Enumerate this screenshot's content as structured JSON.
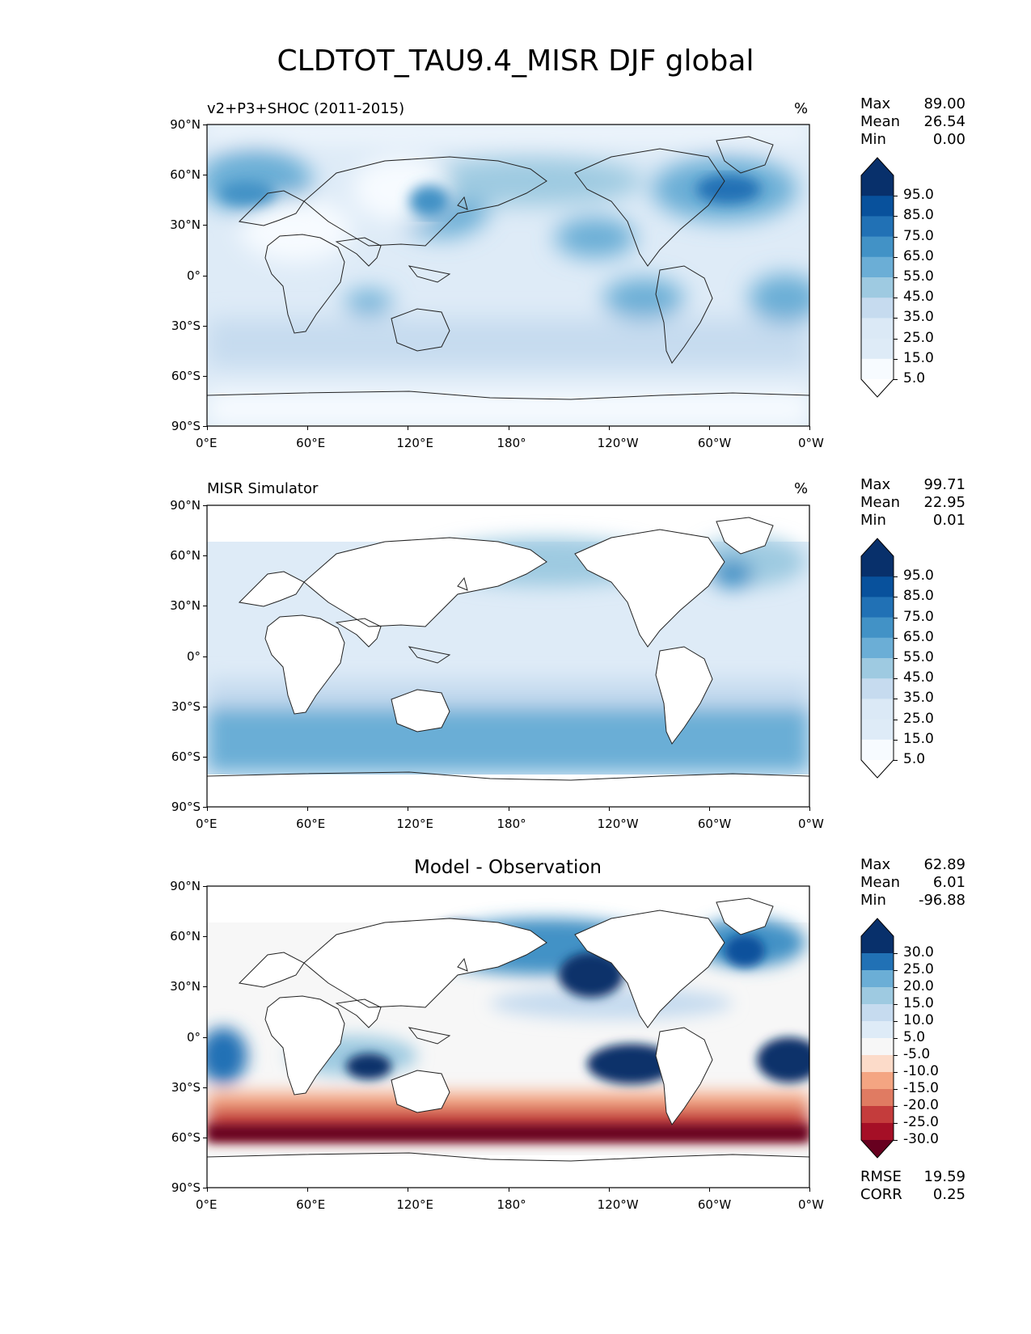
{
  "title": "CLDTOT_TAU9.4_MISR DJF global",
  "lat_ticks": [
    "90°N",
    "60°N",
    "30°N",
    "0°",
    "30°S",
    "60°S",
    "90°S"
  ],
  "lon_ticks": [
    "0°E",
    "60°E",
    "120°E",
    "180°",
    "120°W",
    "60°W",
    "0°W"
  ],
  "colors": {
    "blues": [
      "#f7fbff",
      "#deebf7",
      "#c6dbef",
      "#9ecae1",
      "#6baed6",
      "#4292c6",
      "#2171b5",
      "#08519c",
      "#08306b"
    ],
    "negative": [
      "#fcdbc9",
      "#f4a582",
      "#e07b62",
      "#c43c3c",
      "#a50f26",
      "#67001f"
    ],
    "neutral": "#f7f7f7"
  },
  "panels": [
    {
      "id": "model",
      "left_title": "v2+P3+SHOC (2011-2015)",
      "units": "%",
      "stats": {
        "max_label": "Max",
        "max": "89.00",
        "mean_label": "Mean",
        "mean": "26.54",
        "min_label": "Min",
        "min": "0.00"
      },
      "colorbar_labels": [
        "95.0",
        "85.0",
        "75.0",
        "65.0",
        "55.0",
        "45.0",
        "35.0",
        "25.0",
        "15.0",
        "5.0"
      ]
    },
    {
      "id": "obs",
      "left_title": "MISR Simulator",
      "units": "%",
      "stats": {
        "max_label": "Max",
        "max": "99.71",
        "mean_label": "Mean",
        "mean": "22.95",
        "min_label": "Min",
        "min": "0.01"
      },
      "colorbar_labels": [
        "95.0",
        "85.0",
        "75.0",
        "65.0",
        "55.0",
        "45.0",
        "35.0",
        "25.0",
        "15.0",
        "5.0"
      ]
    },
    {
      "id": "diff",
      "center_title": "Model - Observation",
      "stats": {
        "max_label": "Max",
        "max": "62.89",
        "mean_label": "Mean",
        "mean": "6.01",
        "min_label": "Min",
        "min": "-96.88"
      },
      "colorbar_labels": [
        "30.0",
        "25.0",
        "20.0",
        "15.0",
        "10.0",
        "5.0",
        "-5.0",
        "-10.0",
        "-15.0",
        "-20.0",
        "-25.0",
        "-30.0"
      ],
      "metrics": {
        "rmse_label": "RMSE",
        "rmse": "19.59",
        "corr_label": "CORR",
        "corr": "0.25"
      }
    }
  ]
}
